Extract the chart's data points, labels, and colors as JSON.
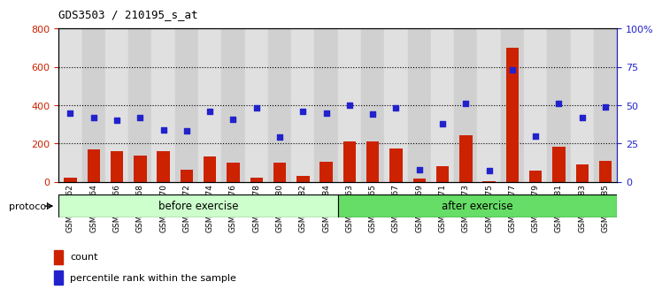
{
  "title": "GDS3503 / 210195_s_at",
  "samples": [
    "GSM306062",
    "GSM306064",
    "GSM306066",
    "GSM306068",
    "GSM306070",
    "GSM306072",
    "GSM306074",
    "GSM306076",
    "GSM306078",
    "GSM306080",
    "GSM306082",
    "GSM306084",
    "GSM306063",
    "GSM306065",
    "GSM306067",
    "GSM306069",
    "GSM306071",
    "GSM306073",
    "GSM306075",
    "GSM306077",
    "GSM306079",
    "GSM306081",
    "GSM306083",
    "GSM306085"
  ],
  "counts": [
    20,
    170,
    160,
    135,
    160,
    65,
    130,
    100,
    20,
    100,
    30,
    105,
    210,
    210,
    175,
    15,
    80,
    245,
    5,
    700,
    60,
    185,
    90,
    110
  ],
  "percentiles": [
    45,
    42,
    40,
    42,
    34,
    33,
    46,
    41,
    48,
    29,
    46,
    45,
    50,
    44,
    48,
    8,
    38,
    51,
    7,
    73,
    30,
    51,
    42,
    49
  ],
  "before_exercise_count": 12,
  "after_exercise_count": 12,
  "bar_color": "#cc2200",
  "dot_color": "#2222cc",
  "left_ylim": [
    0,
    800
  ],
  "right_ylim": [
    0,
    100
  ],
  "left_yticks": [
    0,
    200,
    400,
    600,
    800
  ],
  "right_yticks": [
    0,
    25,
    50,
    75,
    100
  ],
  "right_yticklabels": [
    "0",
    "25",
    "50",
    "75",
    "100%"
  ],
  "before_color": "#ccffcc",
  "after_color": "#66dd66"
}
